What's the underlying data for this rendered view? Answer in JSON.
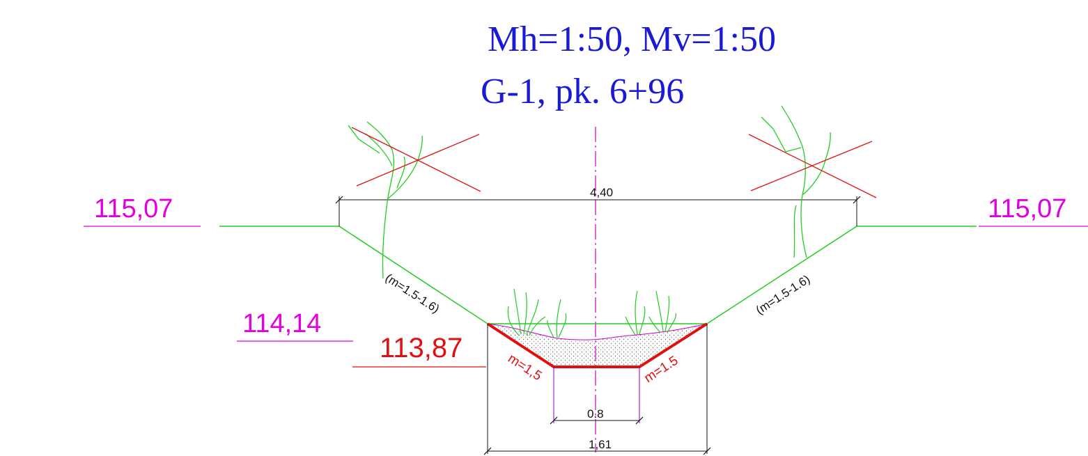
{
  "title": {
    "scale": "Mh=1:50, Mv=1:50",
    "location": "G-1, pk. 6+96"
  },
  "elevations": {
    "left_top": "115,07",
    "right_top": "115,07",
    "left_bottom_existing": "114,14",
    "design_bottom": "113,87"
  },
  "dimensions": {
    "top_width": "4,40",
    "bottom_width": "0.8",
    "design_top_width": "1,61"
  },
  "slopes": {
    "existing_left": "(m=1.5-1.6)",
    "existing_right": "(m=1.5-1.6)",
    "design_left": "m=1,5",
    "design_right": "m=1.5"
  },
  "colors": {
    "title": "#1a1ad6",
    "elevation": "#e000e0",
    "design": "#e01010",
    "ground": "#22cc22",
    "axis": "#cc00cc",
    "dimension": "#111111"
  }
}
